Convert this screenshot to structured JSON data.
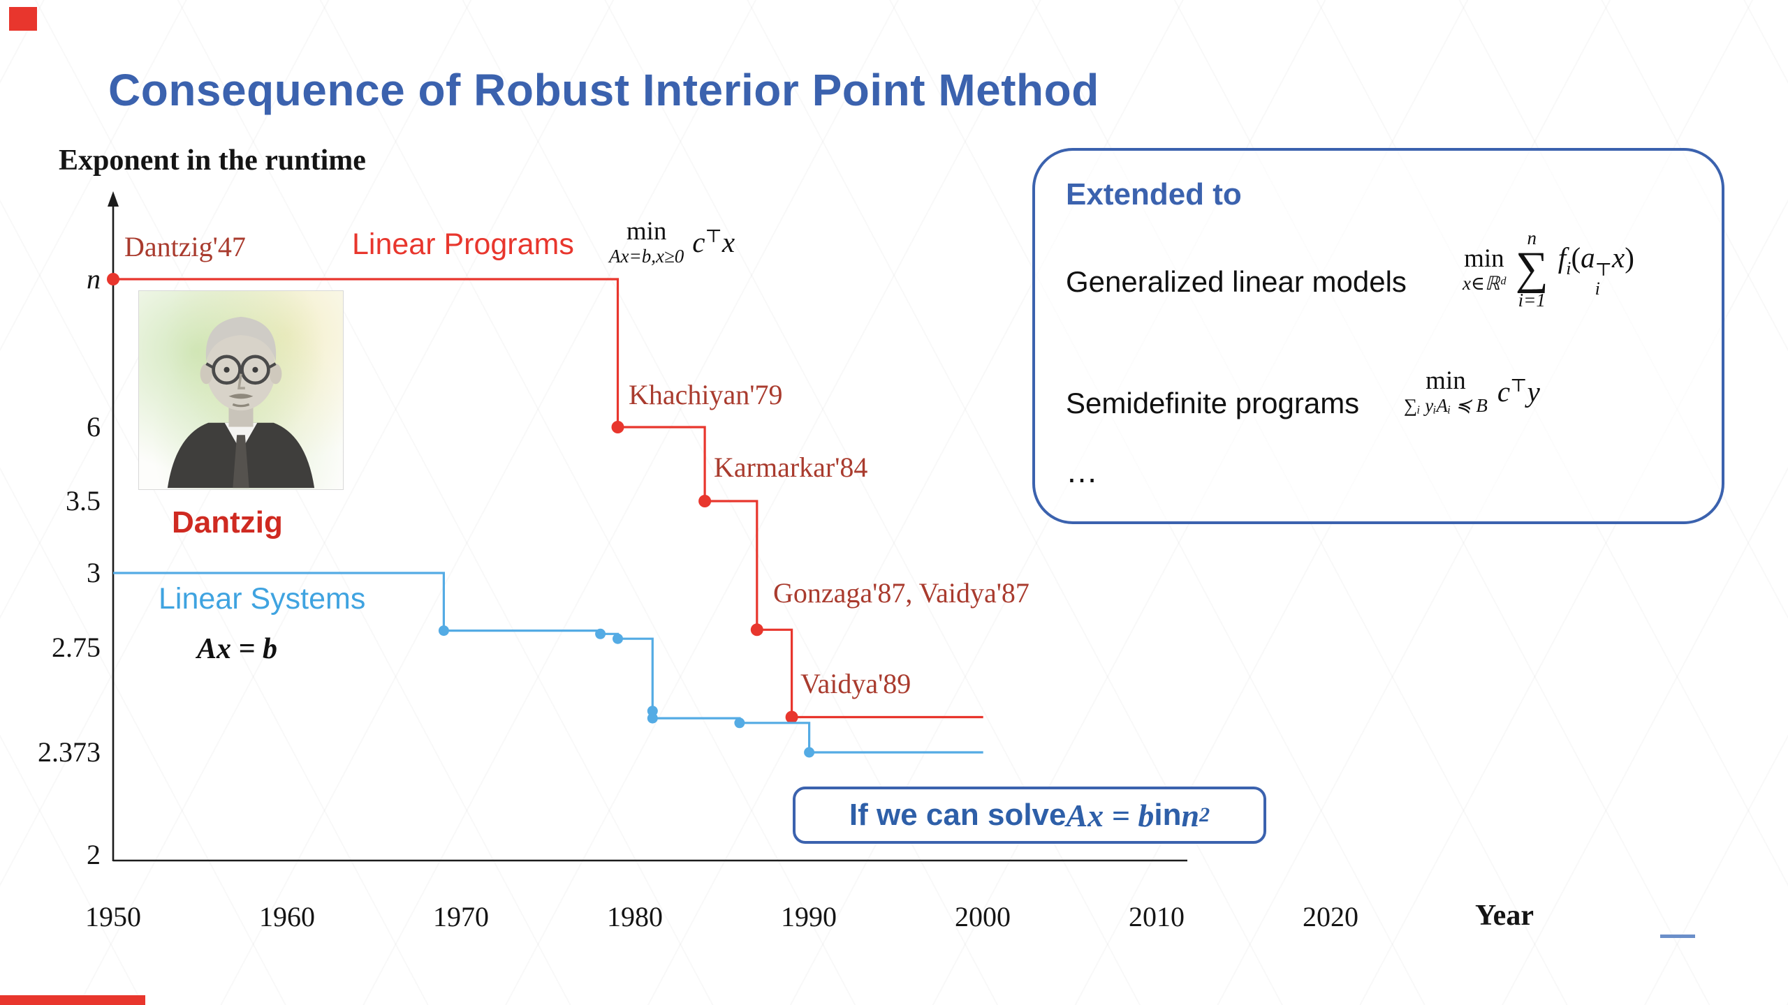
{
  "slide": {
    "title": "Consequence of Robust Interior Point Method",
    "colors": {
      "accent_blue": "#3b62ae",
      "red": "#e8362d",
      "dark_red": "#a93b2e",
      "light_blue": "#3fa3e0"
    }
  },
  "chart_data": {
    "type": "line",
    "title": "Exponent in the runtime",
    "xlabel": "Year",
    "grid": false,
    "x_ticks": [
      "1950",
      "1960",
      "1970",
      "1980",
      "1990",
      "2000",
      "2010",
      "2020"
    ],
    "y_ticks": [
      "n",
      "6",
      "3.5",
      "3",
      "2.75",
      "2.373",
      "2"
    ],
    "x_range": [
      1950,
      2023
    ],
    "series": [
      {
        "name": "Linear Programs",
        "color": "#e8362d",
        "style": "step-after",
        "points": [
          [
            1947,
            "n"
          ],
          [
            1979,
            6
          ],
          [
            1984,
            3.5
          ],
          [
            1987,
            2.81
          ],
          [
            1989,
            2.5
          ],
          [
            2000,
            2.5
          ]
        ],
        "dots": [
          [
            1947,
            "n"
          ],
          [
            1979,
            6
          ],
          [
            1984,
            3.5
          ],
          [
            1987,
            2.81
          ],
          [
            1989,
            2.5
          ]
        ]
      },
      {
        "name": "Linear Systems",
        "color": "#54abe4",
        "style": "step-after",
        "points": [
          [
            1950,
            3
          ],
          [
            1969,
            2.807
          ],
          [
            1978,
            2.796
          ],
          [
            1979,
            2.78
          ],
          [
            1981,
            2.496
          ],
          [
            1986,
            2.479
          ],
          [
            1990,
            2.373
          ],
          [
            2000,
            2.373
          ]
        ],
        "dots": [
          [
            1969,
            2.807
          ],
          [
            1978,
            2.796
          ],
          [
            1979,
            2.78
          ],
          [
            1981,
            2.522
          ],
          [
            1981,
            2.496
          ],
          [
            1986,
            2.479
          ],
          [
            1990,
            2.373
          ]
        ]
      }
    ],
    "annotations": {
      "dantzig47": "Dantzig'47",
      "khachiyan": "Khachiyan'79",
      "karmarkar": "Karmarkar'84",
      "gonzaga_vaidya": "Gonzaga'87, Vaidya'87",
      "vaidya89": "Vaidya'89",
      "dantzig_name": "Dantzig"
    }
  },
  "formulas": {
    "lp": {
      "min": "min",
      "sub": "Ax=b,x≥0",
      "c": "c",
      "sup": "⊤",
      "x": "x"
    },
    "ls": {
      "eq": "Ax = b"
    },
    "glm": {
      "min": "min",
      "sub": "x∈ℝᵈ",
      "sum_top": "n",
      "sum": "∑",
      "sum_bot": "i=1",
      "f": "f",
      "f_sub": "i",
      "open": "(",
      "a": "a",
      "a_sup": "⊤",
      "a_sub": "i",
      "arg": "x",
      "close": ")"
    },
    "sdp": {
      "min": "min",
      "sub": "∑ᵢ yᵢAᵢ ≼ B",
      "c": "c",
      "sup": "⊤",
      "y": "y"
    }
  },
  "extended_box": {
    "heading": "Extended to",
    "items": [
      "Generalized linear models",
      "Semidefinite programs",
      "…"
    ]
  },
  "callout": {
    "text1": "If we can solve ",
    "math": "Ax = b",
    "text2": " in ",
    "math2": "n",
    "sup": "2"
  }
}
